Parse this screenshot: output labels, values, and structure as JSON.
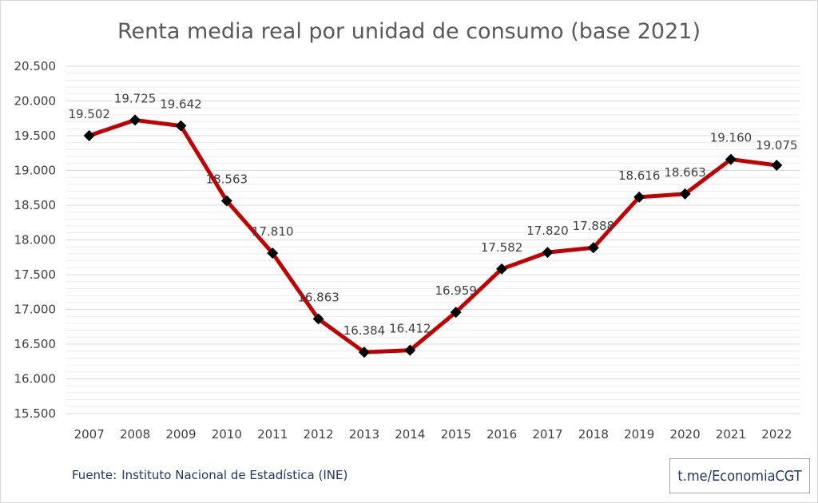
{
  "chart_data": {
    "type": "line",
    "title": "Renta media real por unidad de consumo (base 2021)",
    "xlabel": "",
    "ylabel": "",
    "categories": [
      "2007",
      "2008",
      "2009",
      "2010",
      "2011",
      "2012",
      "2013",
      "2014",
      "2015",
      "2016",
      "2017",
      "2018",
      "2019",
      "2020",
      "2021",
      "2022"
    ],
    "series": [
      {
        "values": [
          19502,
          19725,
          19642,
          18563,
          17810,
          16863,
          16384,
          16412,
          16959,
          17582,
          17820,
          17888,
          18616,
          18663,
          19160,
          19075
        ],
        "labels": [
          "19.502",
          "19.725",
          "19.642",
          "18.563",
          "17.810",
          "16.863",
          "16.384",
          "16.412",
          "16.959",
          "17.582",
          "17.820",
          "17.888",
          "18.616",
          "18.663",
          "19.160",
          "19.075"
        ],
        "color": "#c00000",
        "marker": "diamond",
        "marker_color": "#000000"
      }
    ],
    "ylim": [
      15500,
      20500
    ],
    "yticks": [
      15500,
      16000,
      16500,
      17000,
      17500,
      18000,
      18500,
      19000,
      19500,
      20000,
      20500
    ],
    "ytick_labels": [
      "15.500",
      "16.000",
      "16.500",
      "17.000",
      "17.500",
      "18.000",
      "18.500",
      "19.000",
      "19.500",
      "20.000",
      "20.500"
    ],
    "grid": true,
    "legend": "none"
  },
  "footer": {
    "source_prefix": "Fuente:",
    "source_text": "Instituto Nacional de Estadística (INE)",
    "credit": "t.me/EconomiaCGT"
  },
  "colors": {
    "line": "#c00000",
    "marker": "#000000",
    "grid": "#d9d9d9",
    "text": "#404040",
    "footer_text": "#1f3864"
  }
}
